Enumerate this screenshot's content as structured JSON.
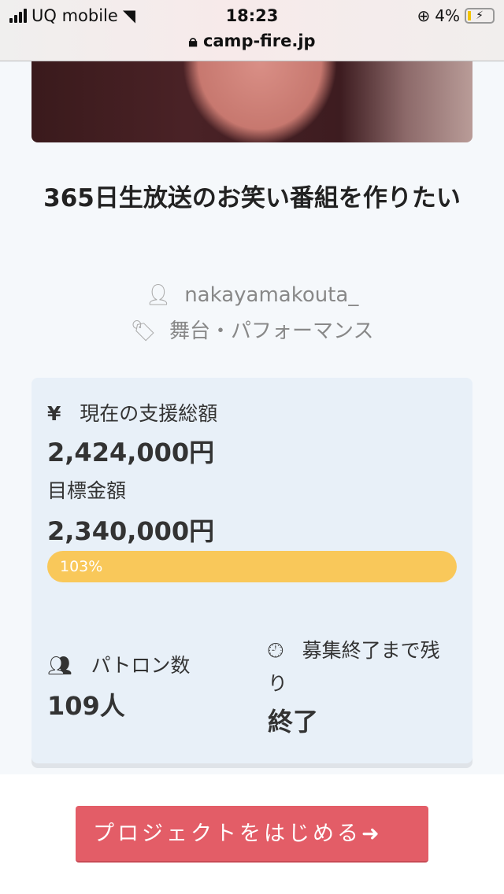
{
  "status_bar": {
    "carrier": "UQ mobile",
    "time": "18:23",
    "battery": "4%",
    "url": "camp-fire.jp"
  },
  "project": {
    "title": "365日生放送のお笑い番組を作りたい",
    "author": "nakayamakouta_",
    "category": "舞台・パフォーマンス"
  },
  "stats": {
    "current_label": "現在の支援総額",
    "current_amount": "2,424,000円",
    "goal_label": "目標金額",
    "goal_amount": "2,340,000円",
    "progress_label": "103%",
    "progress_percent": 103,
    "patrons_label": "パトロン数",
    "patrons_value": "109人",
    "remaining_label": "募集終了まで残り",
    "remaining_value": "終了",
    "yen_icon": "¥"
  },
  "colors": {
    "progress": "#f9c85a",
    "cta": "#e35d67"
  },
  "cta": {
    "label": "プロジェクトをはじめる"
  }
}
